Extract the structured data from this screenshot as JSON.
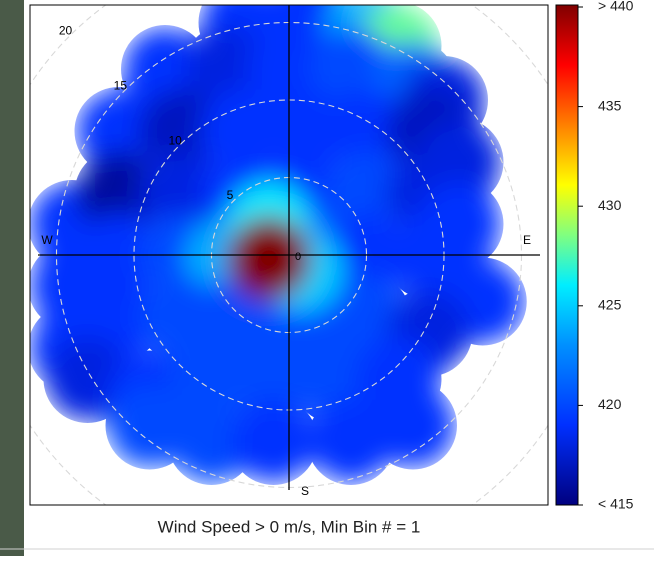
{
  "chart_data": {
    "type": "polar",
    "caption": "Wind Speed > 0 m/s, Min Bin # = 1",
    "compass": {
      "west": "W",
      "east": "E",
      "south": "S"
    },
    "rlim": [
      0,
      20
    ],
    "rticks": [
      0,
      5,
      10,
      15,
      20
    ],
    "clim": [
      415,
      440
    ],
    "cticks": [
      {
        "value": 415,
        "label": "< 415"
      },
      420,
      425,
      430,
      435,
      {
        "value": 440,
        "label": "> 440"
      }
    ],
    "x": [
      -3,
      1,
      5,
      7,
      -8,
      -4,
      0,
      4,
      8,
      10,
      -11,
      -7,
      -3,
      1,
      5,
      9,
      11,
      -14,
      -11,
      -7,
      -3,
      1,
      5,
      9,
      11,
      -14,
      -11,
      -7,
      -4,
      2,
      5,
      9,
      12.5,
      -14,
      -11,
      -7,
      -3,
      1,
      5,
      9,
      -13,
      -9,
      -5,
      -1,
      3,
      7,
      -9,
      -5,
      -1,
      4,
      8,
      -1.3,
      0.8,
      -1.3
    ],
    "y": [
      15,
      15.5,
      14.5,
      13.5,
      12,
      12,
      12,
      12,
      11,
      10,
      8,
      8,
      8,
      8,
      8,
      8,
      6,
      2,
      4,
      4,
      4,
      4,
      4,
      4,
      2,
      -2,
      0,
      0,
      -0.3,
      0,
      0,
      0,
      -3,
      -6,
      -4,
      -4,
      -4,
      -4,
      -4,
      -5,
      -8,
      -9,
      -8,
      -8,
      -8,
      -8,
      -11,
      -12,
      -12,
      -12,
      -11,
      2,
      -1,
      -0.2
    ],
    "values": [
      419,
      419,
      424,
      428,
      419,
      418,
      419,
      420,
      421,
      418,
      419,
      417,
      419,
      419,
      419,
      417,
      418,
      419,
      416,
      418,
      419,
      419,
      420,
      418,
      419,
      419,
      419,
      420,
      424,
      421,
      419,
      419,
      419,
      419,
      419,
      420,
      420,
      420,
      420,
      418,
      418,
      419,
      420,
      420,
      420,
      419,
      420,
      420,
      419,
      419,
      419,
      426,
      425,
      440
    ]
  }
}
